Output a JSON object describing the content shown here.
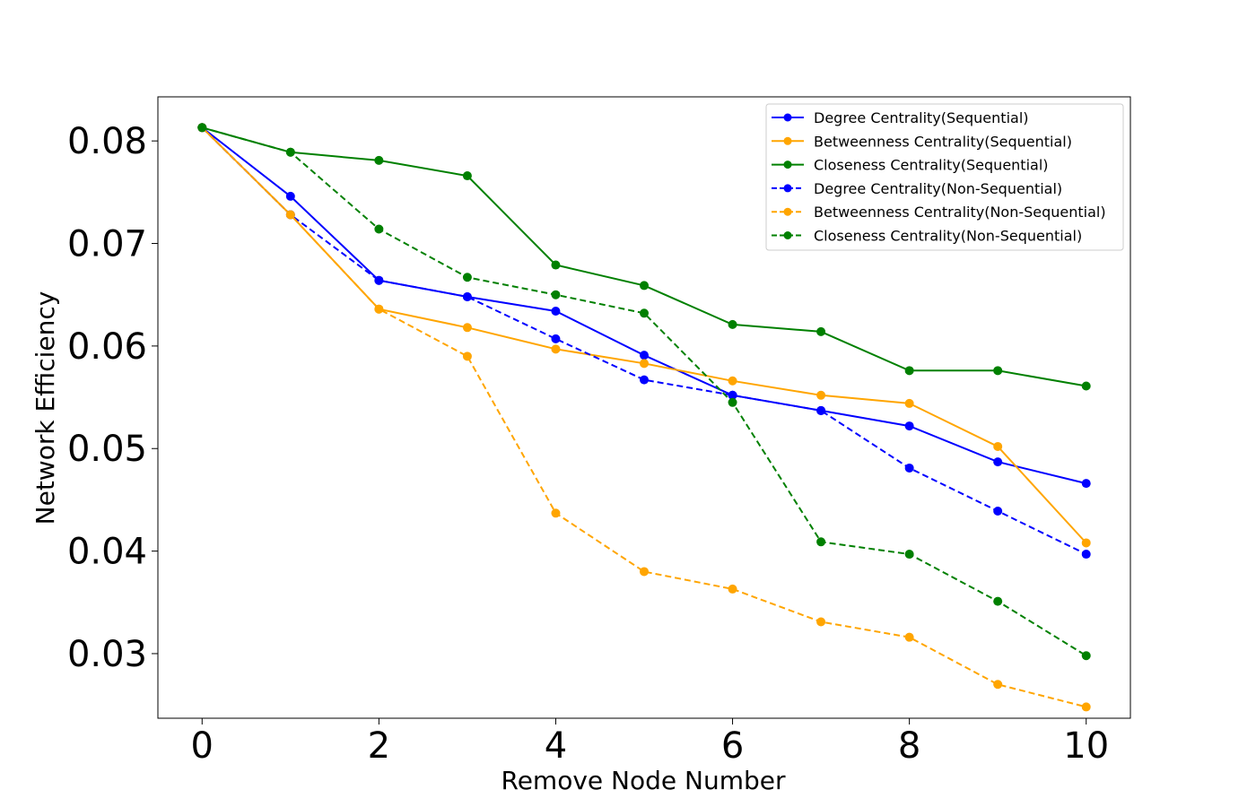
{
  "chart_data": {
    "type": "line",
    "xlabel": "Remove Node Number",
    "ylabel": "Network Efficiency",
    "xlim": [
      -0.5,
      10.5
    ],
    "ylim": [
      0.0237,
      0.0843
    ],
    "xticks": [
      0,
      2,
      4,
      6,
      8,
      10
    ],
    "yticks": [
      0.03,
      0.04,
      0.05,
      0.06,
      0.07,
      0.08
    ],
    "xtick_labels": [
      "0",
      "2",
      "4",
      "6",
      "8",
      "10"
    ],
    "ytick_labels": [
      "0.03",
      "0.04",
      "0.05",
      "0.06",
      "0.07",
      "0.08"
    ],
    "grid": false,
    "legend_position": "top-right",
    "x": [
      0,
      1,
      2,
      3,
      4,
      5,
      6,
      7,
      8,
      9,
      10
    ],
    "series": [
      {
        "name": "Degree Centrality(Sequential)",
        "color": "#0000ff",
        "style": "solid",
        "values": [
          0.0813,
          0.0746,
          0.0664,
          0.0648,
          0.0634,
          0.0591,
          0.0552,
          0.0537,
          0.0522,
          0.0487,
          0.0466
        ]
      },
      {
        "name": "Betweenness Centrality(Sequential)",
        "color": "#ffa500",
        "style": "solid",
        "values": [
          0.0813,
          0.0728,
          0.0636,
          0.0618,
          0.0597,
          0.0583,
          0.0566,
          0.0552,
          0.0544,
          0.0502,
          0.0408
        ]
      },
      {
        "name": "Closeness Centrality(Sequential)",
        "color": "#008000",
        "style": "solid",
        "values": [
          0.0813,
          0.0789,
          0.0781,
          0.0766,
          0.0679,
          0.0659,
          0.0621,
          0.0614,
          0.0576,
          0.0576,
          0.0561
        ]
      },
      {
        "name": "Degree Centrality(Non-Sequential)",
        "color": "#0000ff",
        "style": "dashed",
        "values": [
          0.0813,
          0.0728,
          0.0664,
          0.0648,
          0.0607,
          0.0567,
          0.0552,
          0.0537,
          0.0481,
          0.0439,
          0.0397
        ]
      },
      {
        "name": "Betweenness Centrality(Non-Sequential)",
        "color": "#ffa500",
        "style": "dashed",
        "values": [
          0.0813,
          0.0728,
          0.0636,
          0.059,
          0.0437,
          0.038,
          0.0363,
          0.0331,
          0.0316,
          0.027,
          0.0248
        ]
      },
      {
        "name": "Closeness Centrality(Non-Sequential)",
        "color": "#008000",
        "style": "dashed",
        "values": [
          0.0813,
          0.0789,
          0.0714,
          0.0667,
          0.065,
          0.0632,
          0.0545,
          0.0409,
          0.0397,
          0.0351,
          0.0298
        ]
      }
    ]
  }
}
